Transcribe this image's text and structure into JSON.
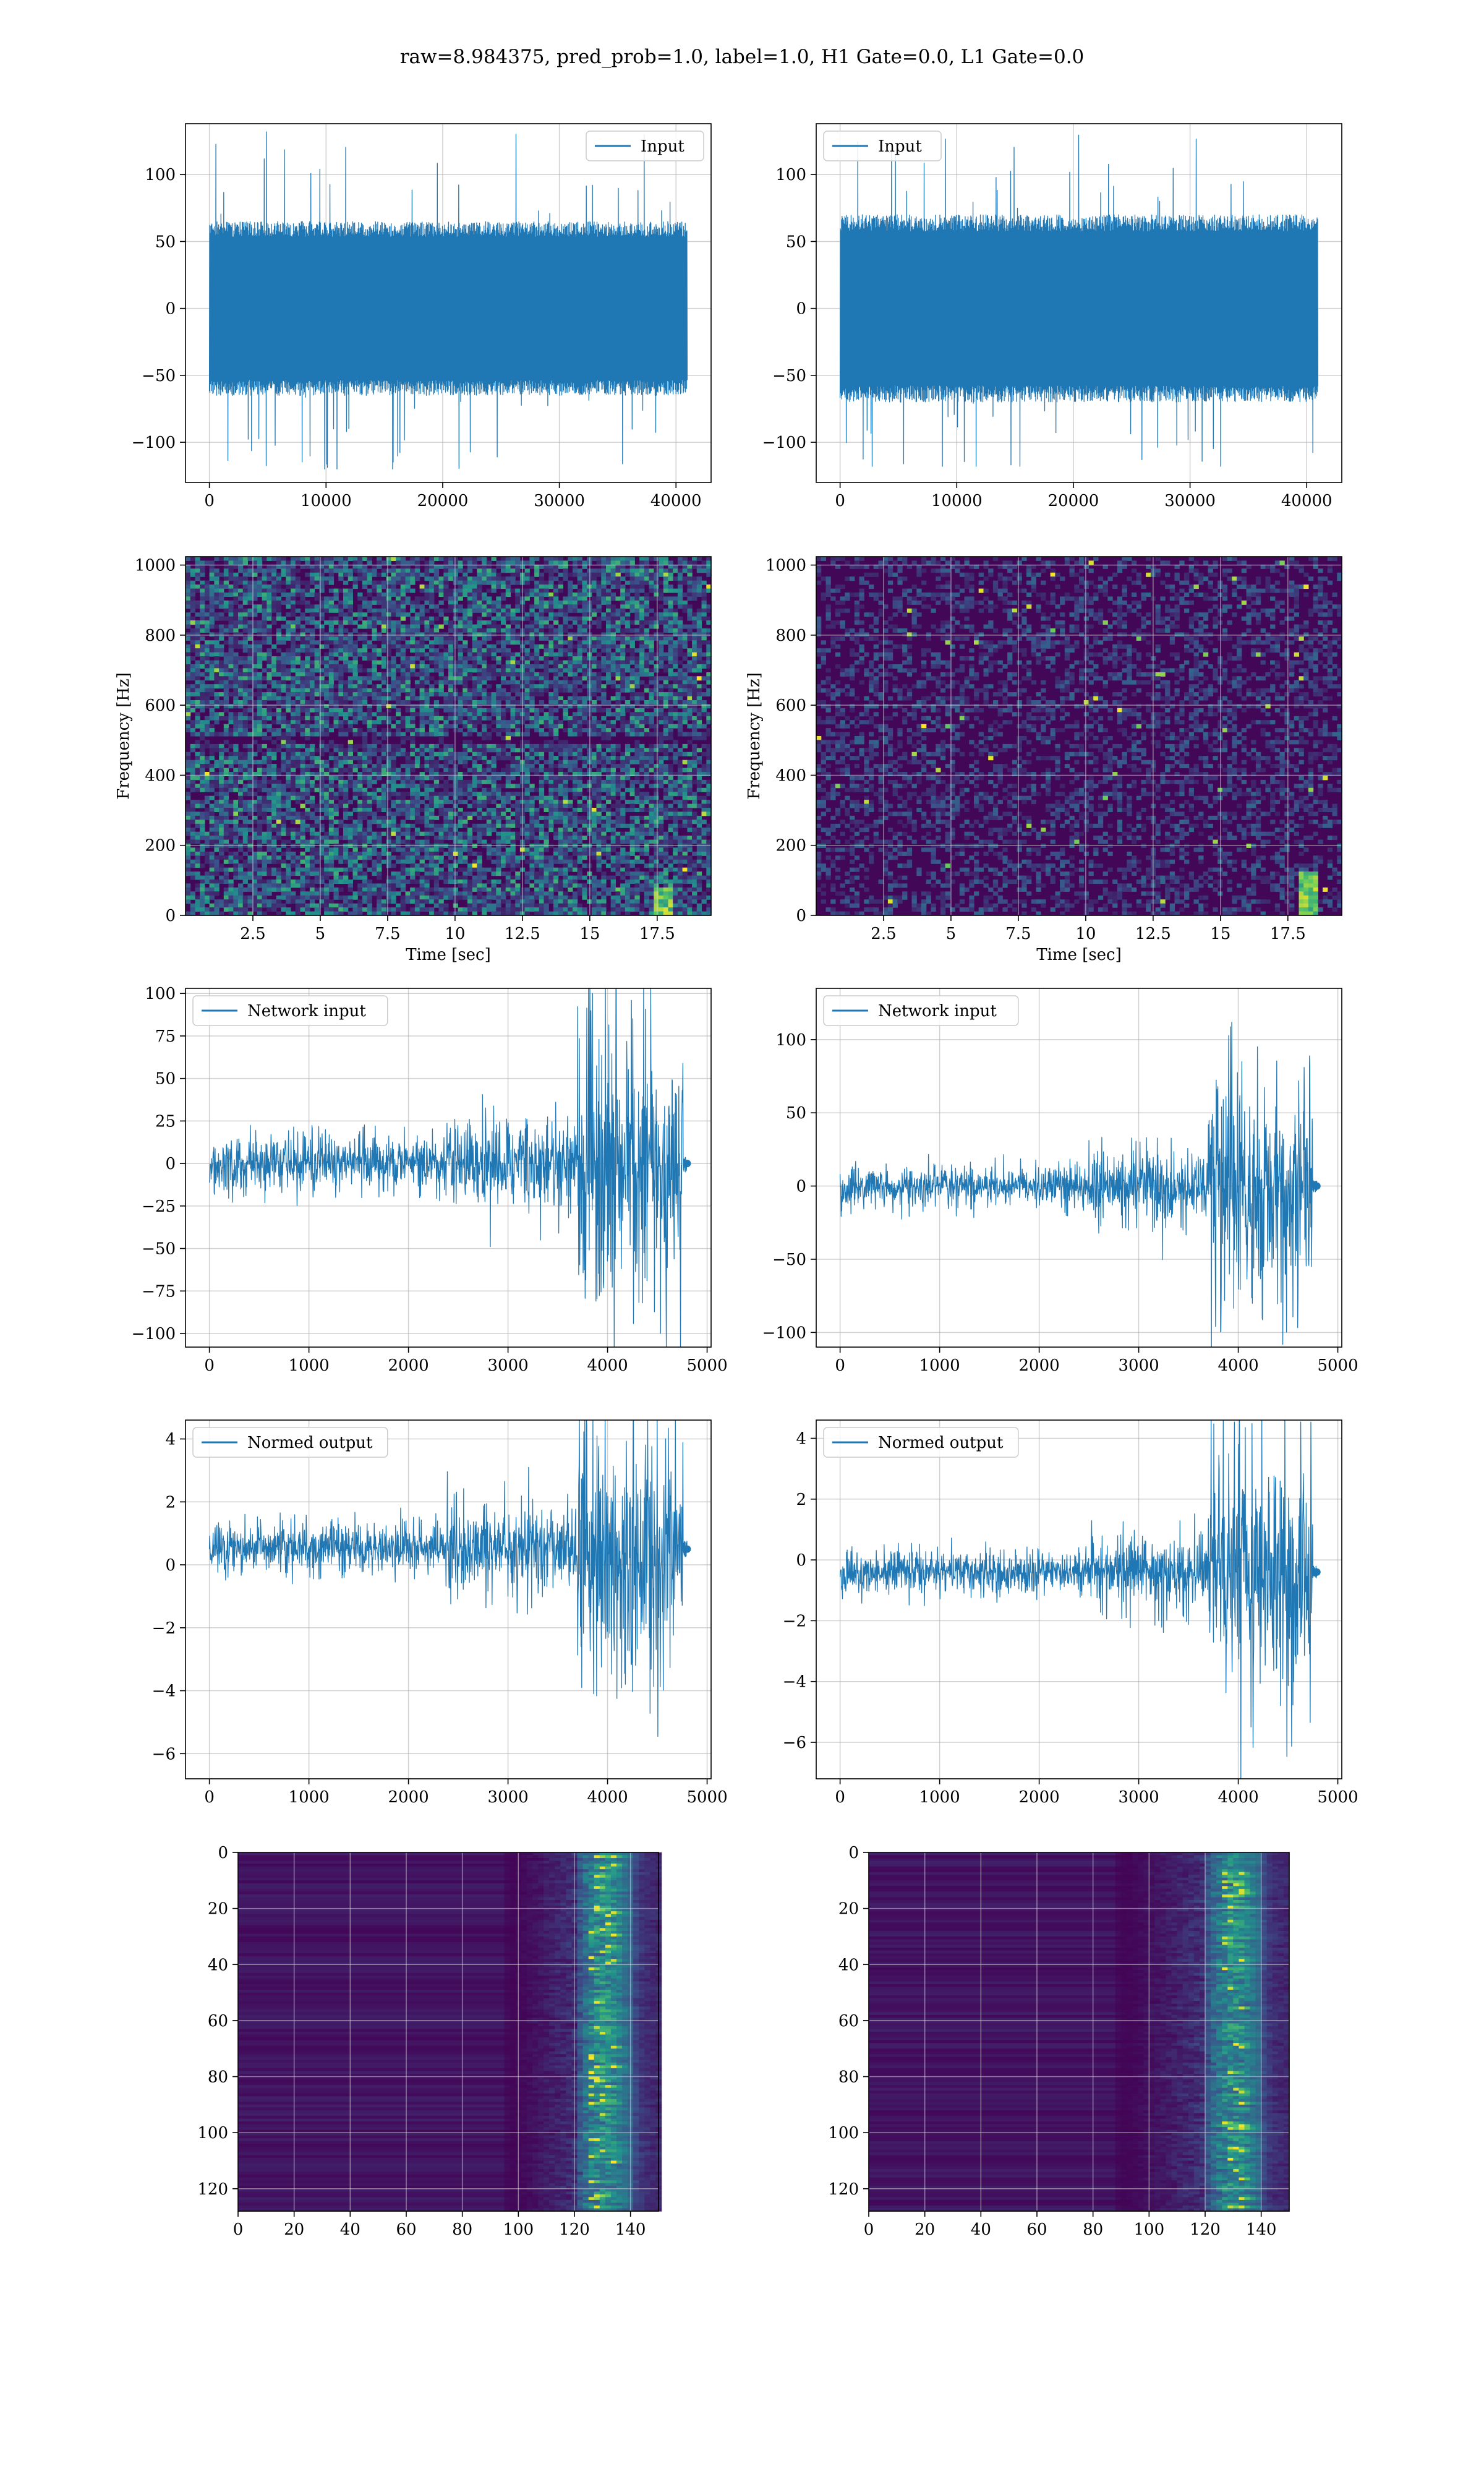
{
  "suptitle": "raw=8.984375, pred_prob=1.0, label=1.0, H1 Gate=0.0, L1 Gate=0.0",
  "colors": {
    "line": "#1f77b4",
    "grid": "#b0b0b0",
    "viridis_low": "#440154",
    "viridis_high": "#fde725"
  },
  "chart_data": [
    {
      "id": "h1-input",
      "type": "line",
      "legend": "Input",
      "legend_loc": "upper right",
      "xlim": [
        -2048,
        43008
      ],
      "ylim": [
        -130,
        138
      ],
      "xticks": [
        0,
        10000,
        20000,
        30000,
        40000
      ],
      "yticks": [
        -100,
        -50,
        0,
        50,
        100
      ],
      "envelope": {
        "x_range": [
          0,
          40960
        ],
        "typical_amplitude": 65,
        "max": 132,
        "min": -120
      }
    },
    {
      "id": "l1-input",
      "type": "line",
      "legend": "Input",
      "legend_loc": "upper left",
      "xlim": [
        -2048,
        43008
      ],
      "ylim": [
        -130,
        138
      ],
      "xticks": [
        0,
        10000,
        20000,
        30000,
        40000
      ],
      "yticks": [
        -100,
        -50,
        0,
        50,
        100
      ],
      "envelope": {
        "x_range": [
          0,
          40960
        ],
        "typical_amplitude": 70,
        "max": 132,
        "min": -118
      }
    },
    {
      "id": "h1-spectrogram",
      "type": "heatmap",
      "xlabel": "Time [sec]",
      "ylabel": "Frequency [Hz]",
      "xlim": [
        0,
        19.5
      ],
      "ylim": [
        0,
        1024
      ],
      "xticks": [
        2.5,
        5.0,
        7.5,
        10.0,
        12.5,
        15.0,
        17.5
      ],
      "yticks": [
        0,
        200,
        400,
        600,
        800,
        1000
      ],
      "colormap": "viridis",
      "note_band_hz": 500,
      "chirp": {
        "t": 17.7,
        "f_max": 80
      }
    },
    {
      "id": "l1-spectrogram",
      "type": "heatmap",
      "xlabel": "Time [sec]",
      "ylabel": "Frequency [Hz]",
      "xlim": [
        0,
        19.5
      ],
      "ylim": [
        0,
        1024
      ],
      "xticks": [
        2.5,
        5.0,
        7.5,
        10.0,
        12.5,
        15.0,
        17.5
      ],
      "yticks": [
        0,
        200,
        400,
        600,
        800,
        1000
      ],
      "colormap": "viridis",
      "chirp": {
        "t": 18.2,
        "f_max": 120
      }
    },
    {
      "id": "h1-network-input",
      "type": "line",
      "legend": "Network input",
      "legend_loc": "upper left",
      "xlim": [
        -240,
        5040
      ],
      "ylim": [
        -108,
        103
      ],
      "xticks": [
        0,
        1000,
        2000,
        3000,
        4000,
        5000
      ],
      "yticks": [
        -100,
        -75,
        -50,
        -25,
        0,
        25,
        50,
        75,
        100
      ],
      "segments": [
        {
          "x": [
            0,
            2360
          ],
          "amplitude": 13
        },
        {
          "x": [
            2360,
            3700
          ],
          "amplitude": 22
        },
        {
          "x": [
            3700,
            4760
          ],
          "amplitude": 68
        }
      ],
      "tail": {
        "x": 4800,
        "y": 0,
        "spread": 5
      }
    },
    {
      "id": "l1-network-input",
      "type": "line",
      "legend": "Network input",
      "legend_loc": "upper left",
      "xlim": [
        -240,
        5040
      ],
      "ylim": [
        -110,
        135
      ],
      "xticks": [
        0,
        1000,
        2000,
        3000,
        4000,
        5000
      ],
      "yticks": [
        -100,
        -50,
        0,
        50,
        100
      ],
      "segments": [
        {
          "x": [
            0,
            2500
          ],
          "amplitude": 12
        },
        {
          "x": [
            2500,
            3700
          ],
          "amplitude": 20
        },
        {
          "x": [
            3700,
            4750
          ],
          "amplitude": 70
        }
      ],
      "tail": {
        "x": 4790,
        "y": 0,
        "spread": 4
      }
    },
    {
      "id": "h1-normed-output",
      "type": "line",
      "legend": "Normed output",
      "legend_loc": "upper left",
      "xlim": [
        -240,
        5040
      ],
      "ylim": [
        -6.8,
        4.6
      ],
      "xticks": [
        0,
        1000,
        2000,
        3000,
        4000,
        5000
      ],
      "yticks": [
        -6,
        -4,
        -2,
        0,
        2,
        4
      ],
      "center": 0.5,
      "segments": [
        {
          "x": [
            0,
            2360
          ],
          "amplitude": 0.65
        },
        {
          "x": [
            2360,
            3700
          ],
          "amplitude": 1.1
        },
        {
          "x": [
            3700,
            4760
          ],
          "amplitude": 3.4
        }
      ],
      "tail": {
        "x": 4800,
        "y": 0.5,
        "spread": 0.25
      }
    },
    {
      "id": "l1-normed-output",
      "type": "line",
      "legend": "Normed output",
      "legend_loc": "upper left",
      "xlim": [
        -240,
        5040
      ],
      "ylim": [
        -7.2,
        4.6
      ],
      "xticks": [
        0,
        1000,
        2000,
        3000,
        4000,
        5000
      ],
      "yticks": [
        -6,
        -4,
        -2,
        0,
        2,
        4
      ],
      "center": -0.4,
      "segments": [
        {
          "x": [
            0,
            2500
          ],
          "amplitude": 0.6
        },
        {
          "x": [
            2500,
            3700
          ],
          "amplitude": 1.0
        },
        {
          "x": [
            3700,
            4750
          ],
          "amplitude": 3.3
        }
      ],
      "tail": {
        "x": 4790,
        "y": -0.4,
        "spread": 0.2
      }
    },
    {
      "id": "h1-feature-map",
      "type": "heatmap",
      "colormap": "viridis",
      "origin": "upper",
      "xlim": [
        0,
        150
      ],
      "ylim": [
        128,
        0
      ],
      "xticks": [
        0,
        20,
        40,
        60,
        80,
        100,
        120,
        140
      ],
      "yticks": [
        0,
        20,
        40,
        60,
        80,
        100,
        120
      ],
      "activity": {
        "onset_col": 95,
        "peak_col": 128
      }
    },
    {
      "id": "l1-feature-map",
      "type": "heatmap",
      "colormap": "viridis",
      "origin": "upper",
      "xlim": [
        0,
        150
      ],
      "ylim": [
        128,
        0
      ],
      "xticks": [
        0,
        20,
        40,
        60,
        80,
        100,
        120,
        140
      ],
      "yticks": [
        0,
        20,
        40,
        60,
        80,
        100,
        120
      ],
      "activity": {
        "onset_col": 88,
        "peak_col": 128
      }
    }
  ]
}
